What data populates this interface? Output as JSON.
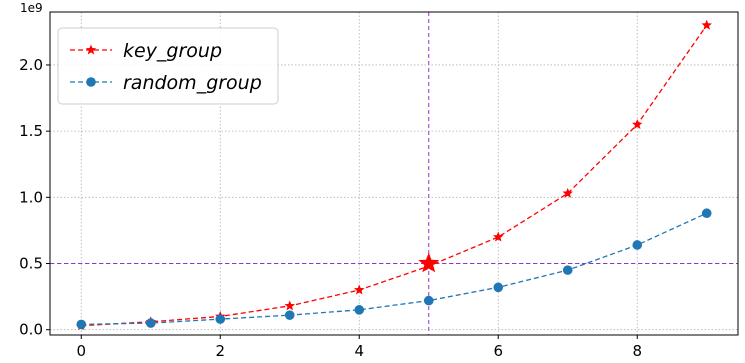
{
  "chart_data": {
    "type": "line",
    "title": "",
    "xlabel": "",
    "ylabel": "",
    "y_offset_text": "1e9",
    "xlim": [
      -0.45,
      9.45
    ],
    "ylim": [
      -0.04,
      2.4
    ],
    "x_ticks": [
      0,
      2,
      4,
      6,
      8
    ],
    "x_tick_labels": [
      "0",
      "2",
      "4",
      "6",
      "8"
    ],
    "y_ticks": [
      0.0,
      0.5,
      1.0,
      1.5,
      2.0
    ],
    "y_tick_labels": [
      "0.0",
      "0.5",
      "1.0",
      "1.5",
      "2.0"
    ],
    "grid": true,
    "legend_position": "top-left",
    "x": [
      0,
      1,
      2,
      3,
      4,
      5,
      6,
      7,
      8,
      9
    ],
    "series": [
      {
        "name": "key_group",
        "values": [
          0.03,
          0.06,
          0.1,
          0.18,
          0.3,
          0.48,
          0.7,
          1.03,
          1.55,
          2.3
        ],
        "color": "#ff0000",
        "marker": "star",
        "linestyle": "dashed"
      },
      {
        "name": "random_group",
        "values": [
          0.04,
          0.05,
          0.08,
          0.11,
          0.15,
          0.22,
          0.32,
          0.45,
          0.64,
          0.88
        ],
        "color": "#1f77b4",
        "marker": "circle",
        "linestyle": "dashed"
      }
    ],
    "reference_lines": {
      "vertical_x": 5,
      "horizontal_y": 0.5,
      "color": "#9933cc"
    },
    "highlight_point": {
      "x": 5,
      "y": 0.5,
      "color": "#ff0000",
      "marker": "star"
    }
  }
}
